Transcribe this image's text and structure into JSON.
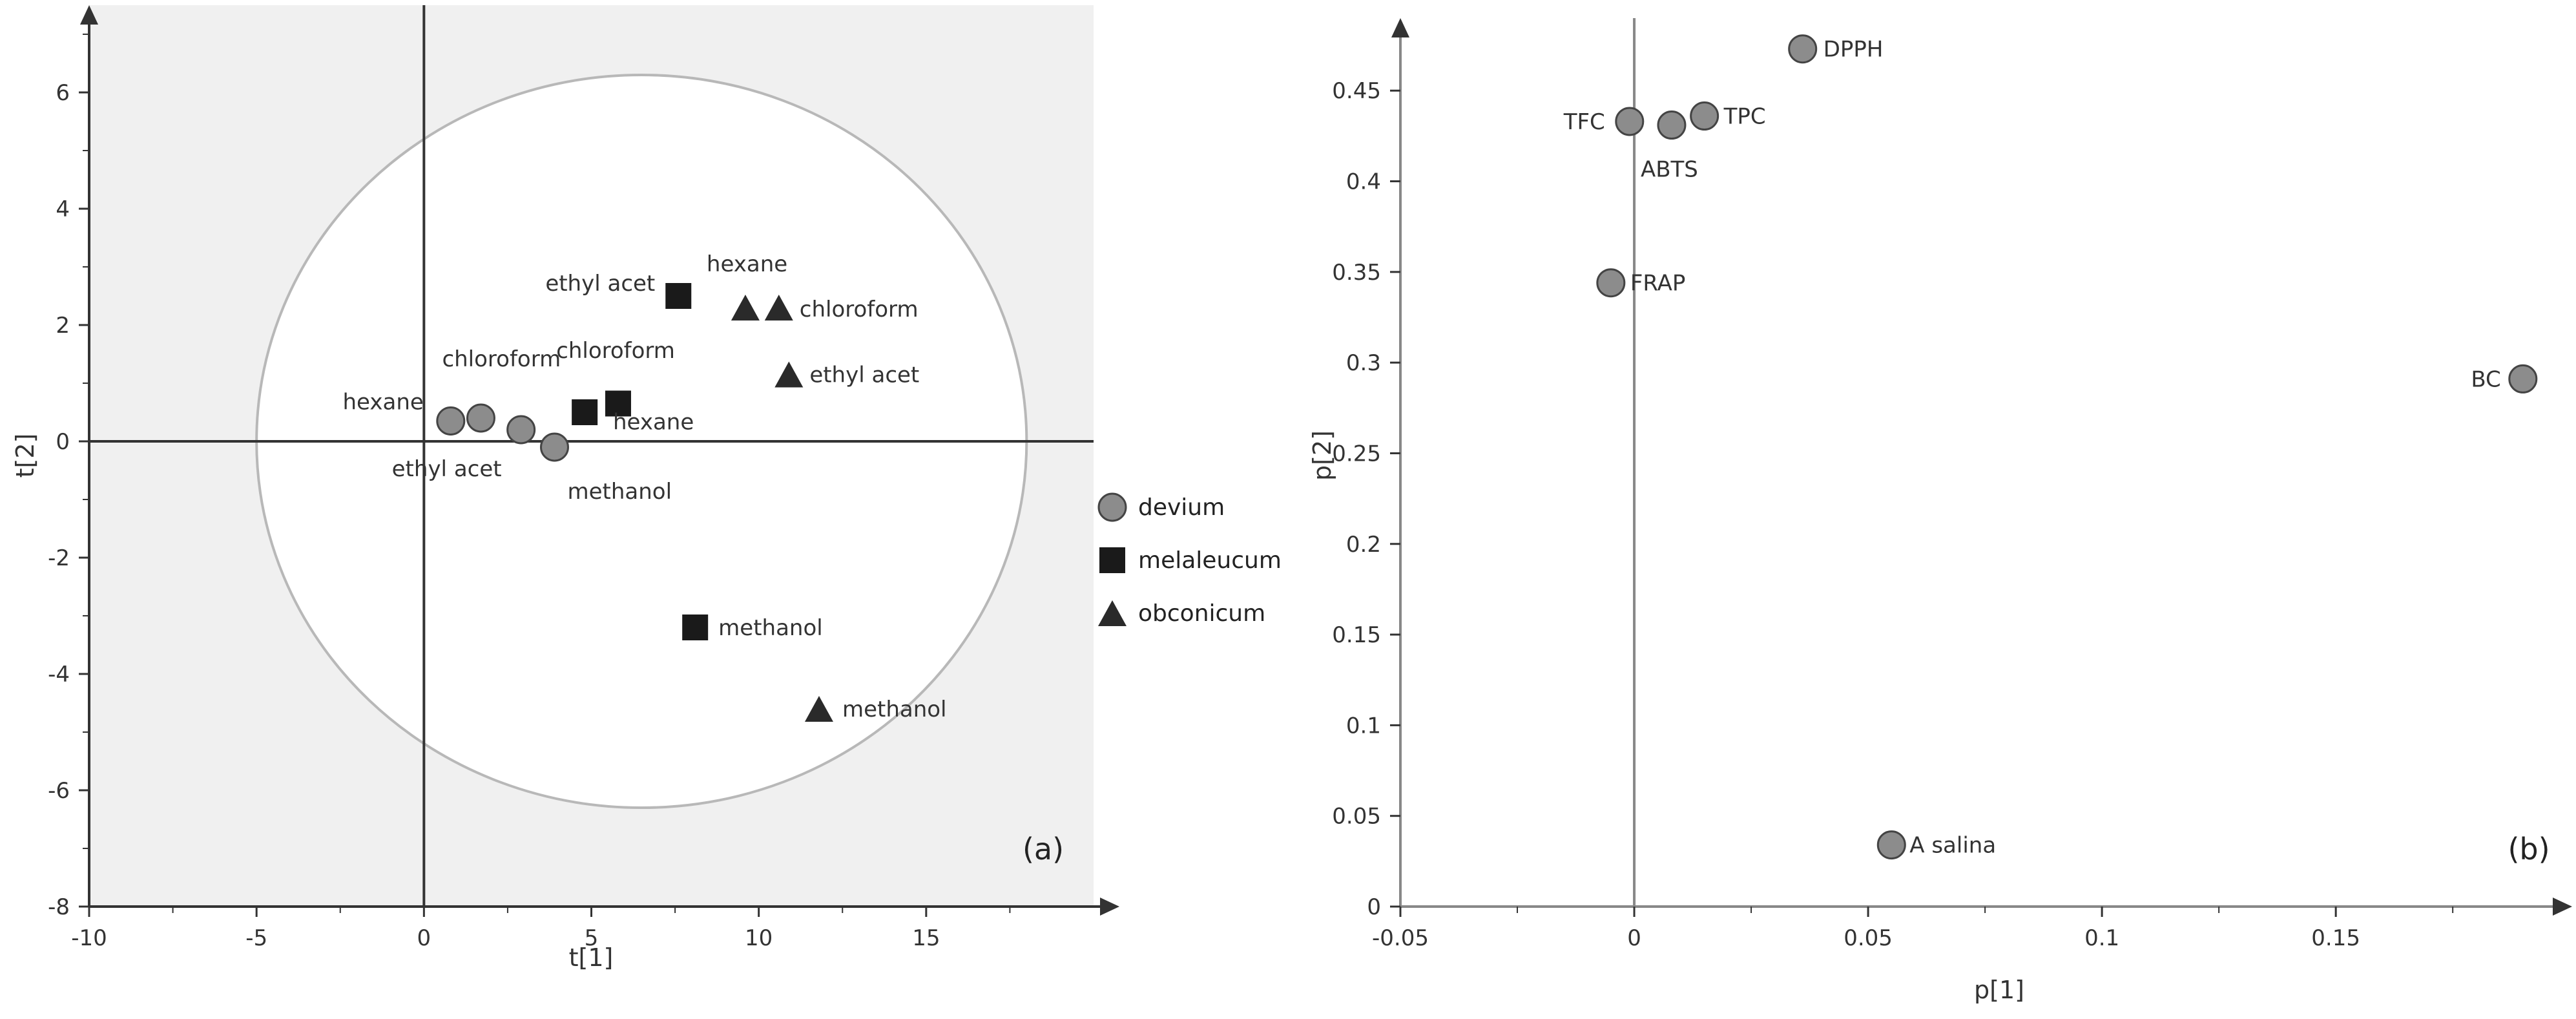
{
  "chart_data": [
    {
      "type": "scatter",
      "panel_label": "(a)",
      "xlabel": "t[1]",
      "ylabel": "t[2]",
      "xlim": [
        -10,
        20
      ],
      "ylim": [
        -8,
        7.5
      ],
      "xticks": [
        -10,
        -5,
        0,
        5,
        10,
        15
      ],
      "yticks": [
        -8,
        -6,
        -4,
        -2,
        0,
        2,
        4,
        6
      ],
      "background": "#f0f0f0",
      "plot_area_color": "#ffffff",
      "ellipse": {
        "center": [
          6.5,
          0
        ],
        "radii": [
          11.5,
          6.3
        ]
      },
      "legend_position": "right",
      "series": [
        {
          "name": "devium",
          "marker": "circle",
          "color": "#8c8c8c",
          "points": [
            {
              "x": 0.8,
              "y": 0.35,
              "label": "hexane"
            },
            {
              "x": 1.7,
              "y": 0.4,
              "label": "chloroform"
            },
            {
              "x": 2.9,
              "y": 0.2,
              "label": "ethyl acet"
            },
            {
              "x": 3.9,
              "y": -0.1,
              "label": "methanol"
            }
          ]
        },
        {
          "name": "melaleucum",
          "marker": "square",
          "color": "#1a1a1a",
          "points": [
            {
              "x": 7.6,
              "y": 2.5,
              "label": "ethyl acet"
            },
            {
              "x": 4.8,
              "y": 0.5,
              "label": "chloroform"
            },
            {
              "x": 5.8,
              "y": 0.65,
              "label": "hexane"
            },
            {
              "x": 8.1,
              "y": -3.2,
              "label": "methanol"
            }
          ]
        },
        {
          "name": "obconicum",
          "marker": "triangle",
          "color": "#2a2a2a",
          "points": [
            {
              "x": 9.6,
              "y": 2.3,
              "label": "hexane"
            },
            {
              "x": 10.6,
              "y": 2.3,
              "label": "chloroform"
            },
            {
              "x": 10.9,
              "y": 1.15,
              "label": "ethyl acet"
            },
            {
              "x": 11.8,
              "y": -4.6,
              "label": "methanol"
            }
          ]
        }
      ]
    },
    {
      "type": "scatter",
      "panel_label": "(b)",
      "xlabel": "p[1]",
      "ylabel": "p[2]",
      "xlim": [
        -0.05,
        0.195
      ],
      "ylim": [
        0,
        0.49
      ],
      "xticks": [
        -0.05,
        0,
        0.05,
        0.1,
        0.15
      ],
      "xtick_labels": [
        "-0.05",
        "0",
        "0.05",
        "0.1",
        "0.15"
      ],
      "yticks": [
        0,
        0.05,
        0.1,
        0.15,
        0.2,
        0.25,
        0.3,
        0.35,
        0.4,
        0.45
      ],
      "ytick_labels": [
        "0",
        "0.05",
        "0.1",
        "0.15",
        "0.2",
        "0.25",
        "0.3",
        "0.35",
        "0.4",
        "0.45"
      ],
      "series": [
        {
          "marker": "circle",
          "color": "#8c8c8c",
          "points": [
            {
              "x": 0.036,
              "y": 0.473,
              "label": "DPPH"
            },
            {
              "x": -0.001,
              "y": 0.433,
              "label": "TFC"
            },
            {
              "x": 0.008,
              "y": 0.431,
              "label": "ABTS"
            },
            {
              "x": 0.015,
              "y": 0.436,
              "label": "TPC"
            },
            {
              "x": -0.005,
              "y": 0.344,
              "label": "FRAP"
            },
            {
              "x": 0.19,
              "y": 0.291,
              "label": "BC"
            },
            {
              "x": 0.055,
              "y": 0.034,
              "label": "A salina"
            }
          ]
        }
      ]
    }
  ]
}
